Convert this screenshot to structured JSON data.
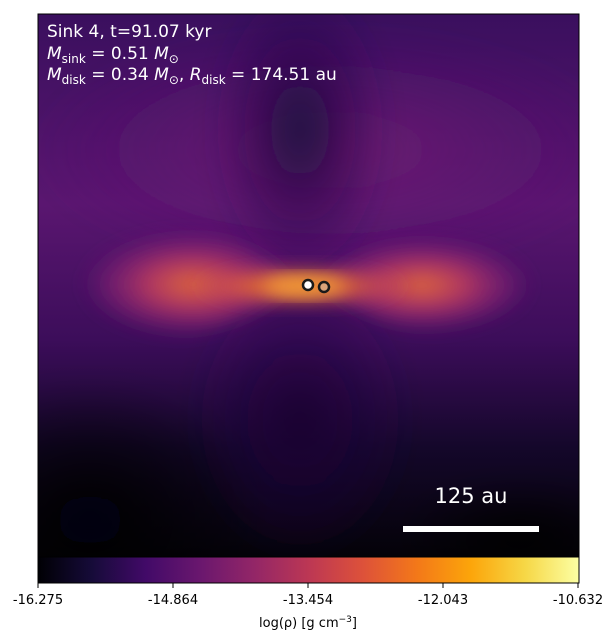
{
  "annotation": {
    "line1": "Sink 4, t=91.07 kyr",
    "sink_mass": {
      "symbol": "M",
      "subscript": "sink",
      "value": " = 0.51 ",
      "unit_symbol": "M",
      "unit_subscript": "⊙"
    },
    "disk": {
      "mass_symbol": "M",
      "mass_subscript": "disk",
      "mass_value": " = 0.34 ",
      "mass_unit": "M",
      "mass_unit_subscript": "⊙",
      "separator": ", ",
      "radius_symbol": "R",
      "radius_subscript": "disk",
      "radius_value": " = 174.51 au"
    }
  },
  "scale_bar": {
    "label": "125 au"
  },
  "colorbar": {
    "ticks": [
      "-16.275",
      "-14.864",
      "-13.454",
      "-12.043",
      "-10.632"
    ],
    "label_prefix": "log(ρ) [g cm",
    "label_exponent": "−3",
    "label_suffix": "]",
    "colormap": "inferno",
    "range": [
      -16.275,
      -10.632
    ]
  },
  "sinks": {
    "primary_color": "#ffffff",
    "secondary_color": "#d9a37a"
  }
}
